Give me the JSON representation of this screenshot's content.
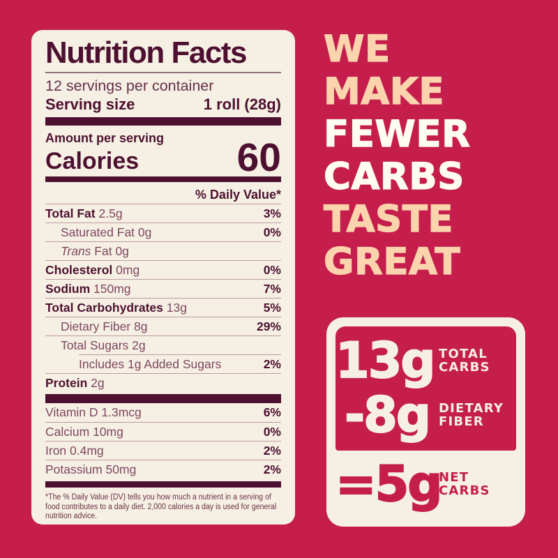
{
  "colors": {
    "background": "#c51e4d",
    "cream": "#f6f0e4",
    "dark_maroon": "#4d1030",
    "plum_text": "#7d4660",
    "peach": "#fbd4ae",
    "white": "#fffcf4"
  },
  "label": {
    "title": "Nutrition Facts",
    "servings_per_container": "12 servings per container",
    "serving_size_label": "Serving size",
    "serving_size_value": "1 roll (28g)",
    "amount_per_serving": "Amount per serving",
    "calories_label": "Calories",
    "calories_value": "60",
    "daily_value_header": "% Daily Value*",
    "rows": [
      {
        "strong": "Total Fat",
        "plain": " 2.5g",
        "pct": "3%"
      },
      {
        "plain": "Saturated Fat 0g",
        "pct": "0%"
      },
      {
        "em": "Trans",
        "plain": " Fat 0g",
        "pct": ""
      },
      {
        "strong": "Cholesterol",
        "plain": " 0mg",
        "pct": "0%"
      },
      {
        "strong": "Sodium",
        "plain": " 150mg",
        "pct": "7%"
      },
      {
        "strong": "Total Carbohydrates",
        "plain": " 13g",
        "pct": "5%"
      },
      {
        "plain": "Dietary Fiber 8g",
        "pct": "29%"
      },
      {
        "plain": "Total Sugars 2g",
        "pct": ""
      },
      {
        "plain": "Includes 1g Added Sugars",
        "pct": "2%"
      },
      {
        "strong": "Protein",
        "plain": " 2g",
        "pct": ""
      }
    ],
    "vitamin_rows": [
      {
        "plain": "Vitamin D 1.3mcg",
        "pct": "6%"
      },
      {
        "plain": "Calcium 10mg",
        "pct": "0%"
      },
      {
        "plain": "Iron 0.4mg",
        "pct": "2%"
      },
      {
        "plain": "Potassium 50mg",
        "pct": "2%"
      }
    ],
    "footnote": "*The % Daily Value (DV) tells you how much a nutrient in a serving of food contributes to a daily diet. 2,000 calories a day is used for general nutrition advice."
  },
  "tagline": {
    "lines": [
      "WE",
      "MAKE",
      "FEWER",
      "CARBS",
      "TASTE",
      "GREAT"
    ]
  },
  "carbs_box": {
    "total": {
      "value": "13g",
      "label_line1": "TOTAL",
      "label_line2": "CARBS"
    },
    "fiber": {
      "value": "-8g",
      "label_line1": "DIETARY",
      "label_line2": "FIBER"
    },
    "net": {
      "value": "=5g",
      "label_line1": "NET",
      "label_line2": "CARBS"
    }
  }
}
